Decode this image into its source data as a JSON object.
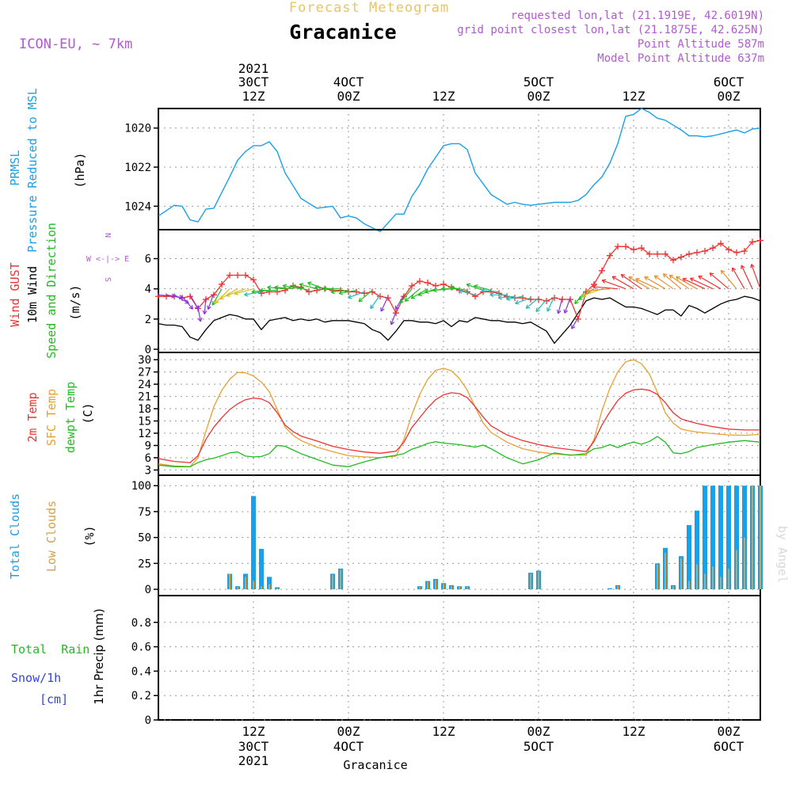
{
  "header": {
    "forecast_label": "Forecast Meteogram",
    "station": "Gracanice",
    "model": "ICON-EU, ~ 7km",
    "requested": "requested lon,lat (21.1919E, 42.6019N)",
    "grid_point": "grid point closest lon,lat (21.1875E, 42.625N)",
    "point_altitude": "Point Altitude 587m",
    "model_altitude": "Model Point Altitude 637m",
    "footer_station": "Gracanice",
    "watermark": "by Angel"
  },
  "colors": {
    "pressure": "#1aa0e6",
    "gust": "#ee3333",
    "wind": "#000000",
    "t2m": "#ee3333",
    "tsfc": "#e8a030",
    "dewpt": "#22bb22",
    "total_clouds": "#1aa0e6",
    "low_clouds": "#d4a04a",
    "title_gold": "#e8c46a",
    "purple": "#b05ad0",
    "blue_label": "#3344dd"
  },
  "top_time_axis": [
    {
      "h": 12,
      "l1": "2021",
      "l2": "30CT",
      "l3": "12Z"
    },
    {
      "h": 24,
      "l1": "",
      "l2": "4OCT",
      "l3": "00Z"
    },
    {
      "h": 36,
      "l1": "",
      "l2": "",
      "l3": "12Z"
    },
    {
      "h": 48,
      "l1": "",
      "l2": "5OCT",
      "l3": "00Z"
    },
    {
      "h": 60,
      "l1": "",
      "l2": "",
      "l3": "12Z"
    },
    {
      "h": 72,
      "l1": "",
      "l2": "6OCT",
      "l3": "00Z"
    }
  ],
  "bottom_time_axis": [
    {
      "h": 12,
      "l1": "12Z",
      "l2": "30CT",
      "l3": "2021"
    },
    {
      "h": 24,
      "l1": "00Z",
      "l2": "4OCT",
      "l3": ""
    },
    {
      "h": 36,
      "l1": "12Z",
      "l2": "",
      "l3": ""
    },
    {
      "h": 48,
      "l1": "00Z",
      "l2": "5OCT",
      "l3": ""
    },
    {
      "h": 60,
      "l1": "12Z",
      "l2": "",
      "l3": ""
    },
    {
      "h": 72,
      "l1": "00Z",
      "l2": "6OCT",
      "l3": ""
    }
  ],
  "chart_data": [
    {
      "type": "line",
      "id": "pressure",
      "label_lines": [
        "PRMSL",
        "Pressure Reduced to MSL"
      ],
      "unit": "(hPa)",
      "ylim": [
        1019.0,
        1025.2
      ],
      "yticks": [
        1020,
        1022,
        1024
      ],
      "x": [
        0,
        2,
        3,
        4,
        5,
        6,
        7,
        8,
        9,
        10,
        11,
        12,
        13,
        14,
        15,
        16,
        18,
        20,
        22,
        23,
        24,
        25,
        26,
        28,
        30,
        31,
        32,
        33,
        34,
        36,
        37,
        38,
        39,
        40,
        42,
        44,
        45,
        46,
        47,
        48,
        50,
        52,
        53,
        54,
        55,
        56,
        57,
        58,
        59,
        60,
        61,
        62,
        63,
        64,
        66,
        67,
        68,
        69,
        70,
        71,
        72,
        73,
        74,
        75,
        76
      ],
      "series": [
        {
          "name": "PRMSL",
          "values": [
            1024.5,
            1023.95,
            1024.0,
            1024.7,
            1024.8,
            1024.15,
            1024.1,
            1023.3,
            1022.5,
            1021.65,
            1021.2,
            1020.9,
            1020.9,
            1020.7,
            1021.2,
            1022.3,
            1023.6,
            1024.1,
            1024.0,
            1024.6,
            1024.5,
            1024.6,
            1024.9,
            1025.3,
            1024.4,
            1024.4,
            1023.5,
            1022.9,
            1022.1,
            1020.9,
            1020.8,
            1020.8,
            1021.1,
            1022.3,
            1023.4,
            1023.9,
            1023.8,
            1023.9,
            1023.95,
            1023.9,
            1023.8,
            1023.8,
            1023.7,
            1023.4,
            1022.9,
            1022.5,
            1021.8,
            1020.8,
            1019.4,
            1019.3,
            1019.0,
            1019.2,
            1019.5,
            1019.6,
            1020.1,
            1020.4,
            1020.4,
            1020.45,
            1020.4,
            1020.3,
            1020.2,
            1020.1,
            1020.25,
            1020.05,
            1020.0
          ]
        }
      ]
    },
    {
      "type": "line",
      "id": "wind",
      "label_lines": [
        "Wind GUST",
        "10m Wind",
        "Speed and Direction"
      ],
      "unit": "(m/s)",
      "compass": [
        "N",
        "W <-|-> E",
        "S"
      ],
      "ylim": [
        0,
        7.6
      ],
      "yticks": [
        0,
        2,
        4,
        6
      ],
      "x": [
        0,
        1,
        2,
        3,
        4,
        5,
        6,
        7,
        8,
        9,
        10,
        11,
        12,
        13,
        14,
        15,
        16,
        17,
        18,
        19,
        20,
        21,
        22,
        23,
        24,
        25,
        26,
        27,
        28,
        29,
        30,
        31,
        32,
        33,
        34,
        35,
        36,
        37,
        38,
        39,
        40,
        41,
        42,
        43,
        44,
        45,
        46,
        47,
        48,
        49,
        50,
        51,
        52,
        53,
        54,
        55,
        56,
        57,
        58,
        59,
        60,
        61,
        62,
        63,
        64,
        65,
        66,
        67,
        68,
        69,
        70,
        71,
        72,
        73,
        74,
        75,
        76
      ],
      "series": [
        {
          "name": "Wind GUST",
          "values": [
            3.5,
            3.5,
            3.5,
            3.4,
            3.5,
            2.7,
            3.3,
            3.6,
            4.3,
            4.9,
            4.9,
            4.9,
            4.6,
            3.7,
            3.8,
            3.8,
            3.9,
            4.2,
            4.1,
            3.8,
            3.9,
            4.0,
            3.9,
            3.9,
            3.8,
            3.8,
            3.7,
            3.8,
            3.5,
            3.4,
            2.4,
            3.5,
            4.2,
            4.5,
            4.4,
            4.2,
            4.3,
            4.1,
            3.9,
            3.8,
            3.5,
            3.8,
            3.8,
            3.7,
            3.5,
            3.4,
            3.4,
            3.3,
            3.3,
            3.2,
            3.4,
            3.3,
            3.3,
            2.0,
            3.8,
            4.3,
            5.2,
            6.2,
            6.8,
            6.8,
            6.6,
            6.7,
            6.3,
            6.3,
            6.3,
            5.9,
            6.1,
            6.3,
            6.4,
            6.5,
            6.7,
            7.0,
            6.6,
            6.4,
            6.5,
            7.1,
            7.2
          ]
        },
        {
          "name": "10m Wind",
          "values": [
            1.7,
            1.6,
            1.6,
            1.5,
            0.8,
            0.6,
            1.3,
            1.9,
            2.1,
            2.3,
            2.2,
            2.0,
            2.0,
            1.3,
            1.9,
            2.0,
            2.1,
            1.9,
            2.0,
            1.9,
            2.0,
            1.8,
            1.9,
            1.9,
            1.9,
            1.8,
            1.7,
            1.3,
            1.1,
            0.6,
            1.2,
            1.9,
            1.9,
            1.8,
            1.8,
            1.7,
            1.9,
            1.5,
            1.9,
            1.8,
            2.1,
            2.0,
            1.9,
            1.9,
            1.8,
            1.8,
            1.7,
            1.8,
            1.5,
            1.2,
            0.4,
            1.0,
            1.6,
            2.4,
            3.2,
            3.4,
            3.3,
            3.4,
            3.1,
            2.8,
            2.8,
            2.7,
            2.5,
            2.3,
            2.6,
            2.6,
            2.2,
            2.9,
            2.7,
            2.4,
            2.7,
            3.0,
            3.2,
            3.3,
            3.5,
            3.4,
            3.2
          ]
        }
      ],
      "arrow_x": [
        0,
        1,
        2,
        3,
        4,
        5,
        6,
        7,
        8,
        9,
        10,
        11,
        12,
        13,
        14,
        15,
        16,
        17,
        18,
        19,
        20,
        21,
        22,
        23,
        24,
        25,
        26,
        27,
        28,
        29,
        30,
        31,
        32,
        33,
        34,
        35,
        36,
        37,
        38,
        39,
        40,
        41,
        42,
        43,
        44,
        45,
        46,
        47,
        48,
        49,
        50,
        51,
        52,
        53,
        54,
        55,
        56,
        57,
        58,
        59,
        60,
        61,
        62,
        63,
        64,
        65,
        66,
        67,
        68,
        69,
        70,
        71,
        72,
        73,
        74,
        75,
        76
      ],
      "arrow_dir_deg": [
        95,
        100,
        120,
        140,
        150,
        170,
        185,
        200,
        210,
        225,
        240,
        250,
        255,
        260,
        265,
        270,
        275,
        275,
        280,
        285,
        285,
        290,
        275,
        270,
        265,
        260,
        250,
        230,
        215,
        205,
        200,
        210,
        220,
        230,
        240,
        250,
        260,
        265,
        270,
        280,
        285,
        290,
        285,
        275,
        270,
        265,
        260,
        250,
        230,
        220,
        205,
        195,
        200,
        210,
        220,
        235,
        250,
        265,
        275,
        290,
        300,
        305,
        300,
        295,
        300,
        305,
        310,
        305,
        300,
        295,
        295,
        300,
        310,
        320,
        330,
        335,
        340
      ],
      "arrow_color": "#22bb22"
    },
    {
      "type": "line",
      "id": "temperature",
      "label_lines": [
        "2m Temp",
        "SFC Temp",
        "dewpt Temp"
      ],
      "unit": "(C)",
      "ylim": [
        2.5,
        31
      ],
      "yticks": [
        3,
        6,
        9,
        12,
        15,
        18,
        21,
        24,
        27,
        30
      ],
      "x": [
        0,
        2,
        4,
        5,
        6,
        7,
        8,
        9,
        10,
        11,
        12,
        13,
        14,
        15,
        16,
        17,
        18,
        20,
        22,
        24,
        26,
        28,
        30,
        31,
        32,
        33,
        34,
        35,
        36,
        37,
        38,
        39,
        40,
        41,
        42,
        44,
        46,
        48,
        50,
        52,
        54,
        55,
        56,
        57,
        58,
        59,
        60,
        61,
        62,
        63,
        64,
        65,
        66,
        67,
        68,
        70,
        72,
        74,
        76
      ],
      "series": [
        {
          "name": "2m Temp",
          "values": [
            5.8,
            5.1,
            4.8,
            6.5,
            10.5,
            13.5,
            15.8,
            17.8,
            19.2,
            20.2,
            20.6,
            20.4,
            19.5,
            17.0,
            14.0,
            12.4,
            11.3,
            10.1,
            8.8,
            8.0,
            7.4,
            7.1,
            7.6,
            9.8,
            13.4,
            15.8,
            18.2,
            20.2,
            21.4,
            21.9,
            21.7,
            20.7,
            18.5,
            16.0,
            13.8,
            11.6,
            10.2,
            9.2,
            8.5,
            8.0,
            7.5,
            10.0,
            14.0,
            17.2,
            20.0,
            21.8,
            22.6,
            22.8,
            22.5,
            21.5,
            19.5,
            17.0,
            15.5,
            14.9,
            14.4,
            13.6,
            13.0,
            12.8,
            12.8
          ]
        },
        {
          "name": "SFC Temp",
          "values": [
            4.5,
            4.0,
            3.8,
            6.0,
            12.5,
            18.5,
            22.5,
            25.2,
            26.9,
            26.8,
            26.0,
            24.5,
            22.2,
            17.8,
            13.5,
            11.5,
            10.2,
            8.6,
            7.5,
            6.5,
            6.2,
            6.0,
            6.4,
            10.5,
            16.5,
            21.5,
            25.2,
            27.4,
            27.9,
            27.3,
            25.4,
            22.5,
            18.4,
            14.5,
            12.2,
            9.8,
            8.2,
            7.4,
            6.9,
            6.7,
            6.6,
            10.5,
            17.5,
            23.0,
            27.0,
            29.5,
            30.0,
            29.0,
            26.5,
            22.0,
            17.0,
            14.5,
            13.0,
            12.6,
            12.3,
            11.9,
            11.6,
            11.5,
            11.7
          ]
        },
        {
          "name": "dewpt Temp",
          "values": [
            4.2,
            3.8,
            3.8,
            4.8,
            5.5,
            5.9,
            6.5,
            7.2,
            7.4,
            6.4,
            6.2,
            6.3,
            7.0,
            9.0,
            8.8,
            7.9,
            7.0,
            5.6,
            4.2,
            3.8,
            5.0,
            6.0,
            6.6,
            7.0,
            8.1,
            8.7,
            9.5,
            9.9,
            9.6,
            9.4,
            9.2,
            8.9,
            8.6,
            9.1,
            8.2,
            6.0,
            4.5,
            5.5,
            7.2,
            6.6,
            7.0,
            8.2,
            8.5,
            9.2,
            8.5,
            9.3,
            9.8,
            9.3,
            10.0,
            11.2,
            9.8,
            7.2,
            7.0,
            7.5,
            8.5,
            9.2,
            9.8,
            10.2,
            9.8
          ]
        }
      ]
    },
    {
      "type": "bar",
      "id": "clouds",
      "label_lines": [
        "Total Clouds",
        "Low Clouds"
      ],
      "unit": "(%)",
      "ylim": [
        -3,
        104
      ],
      "yticks": [
        0,
        25,
        50,
        75,
        100
      ],
      "x": [
        9,
        10,
        11,
        12,
        13,
        14,
        15,
        22,
        23,
        33,
        34,
        35,
        36,
        37,
        38,
        39,
        47,
        48,
        57,
        58,
        63,
        64,
        65,
        66,
        67,
        68,
        69,
        70,
        71,
        72,
        73,
        74,
        75,
        76
      ],
      "series": [
        {
          "name": "Total Clouds",
          "values": [
            15,
            3,
            15,
            90,
            39,
            12,
            2,
            15,
            20,
            3,
            8,
            10,
            6,
            4,
            3,
            3,
            16,
            18,
            1,
            4,
            25,
            40,
            4,
            32,
            62,
            76,
            100,
            100,
            100,
            100,
            100,
            100,
            100,
            100
          ]
        },
        {
          "name": "Low Clouds",
          "values": [
            15,
            2,
            12,
            8,
            3,
            5,
            1,
            14,
            19,
            2,
            7,
            9,
            5,
            3,
            3,
            2,
            15,
            17,
            0,
            3,
            24,
            35,
            3,
            30,
            8,
            24,
            15,
            22,
            12,
            20,
            38,
            50,
            100,
            100
          ]
        }
      ]
    },
    {
      "type": "line",
      "id": "precip",
      "label_lines": [
        "Total  Rain",
        "Snow/1h",
        "[cm]"
      ],
      "axis_label": "1hr Precip (mm)",
      "ylim": [
        0,
        1
      ],
      "yticks": [
        "0",
        "0.2",
        "0.4",
        "0.6",
        "0.8"
      ],
      "x": [
        0,
        76
      ],
      "series": [
        {
          "name": "1hr Precip",
          "values": [
            0,
            0
          ]
        }
      ]
    }
  ]
}
